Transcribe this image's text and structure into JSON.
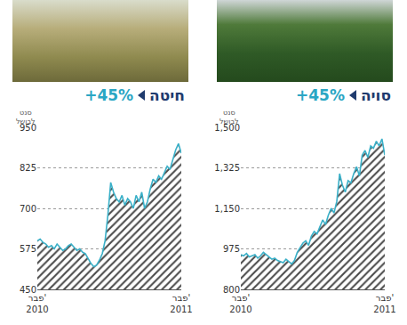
{
  "chart_data": [
    {
      "type": "area",
      "title": "חיטה",
      "change": "+45%",
      "y_label": "סנט לבושל",
      "categories": [
        "פבר' 2010",
        null,
        null,
        null,
        null,
        null,
        null,
        null,
        null,
        null,
        null,
        null,
        null,
        null,
        null,
        null,
        null,
        null,
        null,
        null,
        null,
        null,
        null,
        null,
        null,
        null,
        null,
        null,
        null,
        null,
        null,
        null,
        null,
        null,
        null,
        null,
        null,
        null,
        null,
        null,
        null,
        null,
        null,
        null,
        null,
        null,
        null,
        null,
        null,
        null,
        null,
        "פבר' 2011"
      ],
      "values": [
        600,
        605,
        595,
        590,
        580,
        585,
        575,
        590,
        580,
        570,
        575,
        585,
        590,
        580,
        570,
        575,
        565,
        560,
        545,
        530,
        520,
        525,
        540,
        560,
        600,
        680,
        780,
        750,
        730,
        720,
        740,
        710,
        730,
        720,
        700,
        740,
        720,
        750,
        700,
        720,
        760,
        790,
        780,
        800,
        790,
        810,
        830,
        820,
        850,
        880,
        900,
        870
      ],
      "color": "#3ab0c8",
      "ylim": [
        450,
        950
      ],
      "yticks": [
        450,
        575,
        700,
        825,
        950
      ],
      "grid": true
    },
    {
      "type": "area",
      "title": "סויה",
      "change": "+45%",
      "y_label": "סנט לבושל",
      "categories": [
        "פבר' 2010",
        null,
        null,
        null,
        null,
        null,
        null,
        null,
        null,
        null,
        null,
        null,
        null,
        null,
        null,
        null,
        null,
        null,
        null,
        null,
        null,
        null,
        null,
        null,
        null,
        null,
        null,
        null,
        null,
        null,
        null,
        null,
        null,
        null,
        null,
        null,
        null,
        null,
        null,
        null,
        null,
        null,
        null,
        null,
        null,
        null,
        null,
        null,
        null,
        null,
        null,
        "פבר' 2011"
      ],
      "values": [
        950,
        945,
        955,
        940,
        945,
        950,
        935,
        945,
        960,
        950,
        940,
        930,
        935,
        925,
        920,
        915,
        930,
        920,
        910,
        925,
        960,
        980,
        1000,
        1010,
        990,
        1030,
        1050,
        1040,
        1070,
        1100,
        1080,
        1120,
        1150,
        1130,
        1180,
        1300,
        1250,
        1220,
        1270,
        1260,
        1300,
        1330,
        1290,
        1380,
        1400,
        1370,
        1420,
        1410,
        1440,
        1420,
        1450,
        1380
      ],
      "color": "#3ab0c8",
      "ylim": [
        800,
        1500
      ],
      "yticks": [
        800,
        975,
        {
          "value": 1150,
          "label": "1,150"
        },
        {
          "value": 1325,
          "label": "1,325"
        },
        {
          "value": 1500,
          "label": "1,500"
        }
      ],
      "grid": true
    }
  ]
}
